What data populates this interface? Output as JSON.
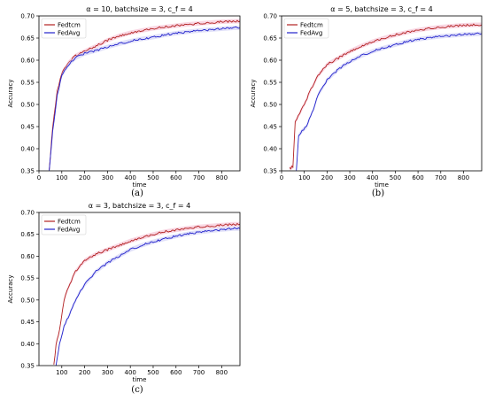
{
  "chart_data": [
    {
      "type": "line",
      "id": "a",
      "title": "α = 10, batchsize = 3, c_f = 4",
      "xlabel": "time",
      "ylabel": "Accuracy",
      "caption": "(a)",
      "xlim": [
        0,
        880
      ],
      "ylim": [
        0.35,
        0.7
      ],
      "xticks": [
        0,
        100,
        200,
        300,
        400,
        500,
        600,
        700,
        800
      ],
      "yticks": [
        0.35,
        0.4,
        0.45,
        0.5,
        0.55,
        0.6,
        0.65,
        0.7
      ],
      "legend_position": "top-left",
      "series": [
        {
          "name": "Fedtcm",
          "color": "#b22222",
          "x": [
            45,
            60,
            80,
            100,
            130,
            160,
            200,
            250,
            300,
            350,
            400,
            450,
            500,
            550,
            600,
            650,
            700,
            750,
            800,
            850,
            880
          ],
          "y": [
            0.35,
            0.45,
            0.53,
            0.57,
            0.595,
            0.61,
            0.62,
            0.632,
            0.645,
            0.655,
            0.662,
            0.667,
            0.672,
            0.675,
            0.678,
            0.681,
            0.683,
            0.685,
            0.687,
            0.688,
            0.688
          ]
        },
        {
          "name": "FedAvg",
          "color": "#2222cc",
          "x": [
            45,
            60,
            80,
            100,
            130,
            160,
            200,
            250,
            300,
            350,
            400,
            450,
            500,
            550,
            600,
            650,
            700,
            750,
            800,
            850,
            880
          ],
          "y": [
            0.35,
            0.44,
            0.52,
            0.565,
            0.59,
            0.605,
            0.615,
            0.622,
            0.63,
            0.637,
            0.643,
            0.648,
            0.652,
            0.657,
            0.661,
            0.664,
            0.667,
            0.669,
            0.671,
            0.673,
            0.673
          ]
        }
      ]
    },
    {
      "type": "line",
      "id": "b",
      "title": "α = 5, batchsize = 3, c_f = 4",
      "xlabel": "time",
      "ylabel": "Accuracy",
      "caption": "(b)",
      "xlim": [
        0,
        880
      ],
      "ylim": [
        0.35,
        0.7
      ],
      "xticks": [
        0,
        100,
        200,
        300,
        400,
        500,
        600,
        700,
        800
      ],
      "yticks": [
        0.35,
        0.4,
        0.45,
        0.5,
        0.55,
        0.6,
        0.65,
        0.7
      ],
      "legend_position": "top-left",
      "series": [
        {
          "name": "Fedtcm",
          "color": "#b22222",
          "x": [
            35,
            50,
            60,
            80,
            100,
            130,
            160,
            200,
            250,
            300,
            350,
            400,
            450,
            500,
            550,
            600,
            650,
            700,
            750,
            800,
            850,
            880
          ],
          "y": [
            0.355,
            0.36,
            0.46,
            0.48,
            0.5,
            0.535,
            0.565,
            0.59,
            0.605,
            0.62,
            0.632,
            0.642,
            0.65,
            0.657,
            0.663,
            0.668,
            0.672,
            0.675,
            0.677,
            0.679,
            0.68,
            0.68
          ]
        },
        {
          "name": "FedAvg",
          "color": "#2222cc",
          "x": [
            65,
            75,
            90,
            110,
            140,
            160,
            200,
            250,
            300,
            350,
            400,
            450,
            500,
            550,
            600,
            650,
            700,
            750,
            800,
            850,
            880
          ],
          "y": [
            0.35,
            0.43,
            0.44,
            0.45,
            0.49,
            0.52,
            0.555,
            0.58,
            0.597,
            0.61,
            0.62,
            0.628,
            0.635,
            0.642,
            0.647,
            0.651,
            0.654,
            0.656,
            0.658,
            0.659,
            0.66
          ]
        }
      ]
    },
    {
      "type": "line",
      "id": "c",
      "title": "α = 3, batchsize = 3, c_f = 4",
      "xlabel": "time",
      "ylabel": "Accuracy",
      "caption": "(c)",
      "xlim": [
        0,
        880
      ],
      "ylim": [
        0.35,
        0.7
      ],
      "xticks": [
        100,
        200,
        300,
        400,
        500,
        600,
        700,
        800
      ],
      "yticks": [
        0.35,
        0.4,
        0.45,
        0.5,
        0.55,
        0.6,
        0.65,
        0.7
      ],
      "legend_position": "top-left",
      "series": [
        {
          "name": "Fedtcm",
          "color": "#b22222",
          "x": [
            65,
            75,
            90,
            110,
            130,
            160,
            200,
            250,
            300,
            350,
            400,
            450,
            500,
            550,
            600,
            650,
            700,
            750,
            800,
            850,
            880
          ],
          "y": [
            0.35,
            0.4,
            0.43,
            0.5,
            0.53,
            0.565,
            0.59,
            0.605,
            0.615,
            0.625,
            0.635,
            0.643,
            0.65,
            0.656,
            0.66,
            0.664,
            0.667,
            0.669,
            0.671,
            0.673,
            0.673
          ]
        },
        {
          "name": "FedAvg",
          "color": "#2222cc",
          "x": [
            75,
            90,
            110,
            140,
            170,
            200,
            250,
            300,
            350,
            400,
            450,
            500,
            550,
            600,
            650,
            700,
            750,
            800,
            850,
            880
          ],
          "y": [
            0.35,
            0.4,
            0.44,
            0.475,
            0.51,
            0.535,
            0.565,
            0.585,
            0.6,
            0.615,
            0.625,
            0.633,
            0.64,
            0.646,
            0.651,
            0.655,
            0.658,
            0.661,
            0.663,
            0.663
          ]
        }
      ]
    }
  ]
}
